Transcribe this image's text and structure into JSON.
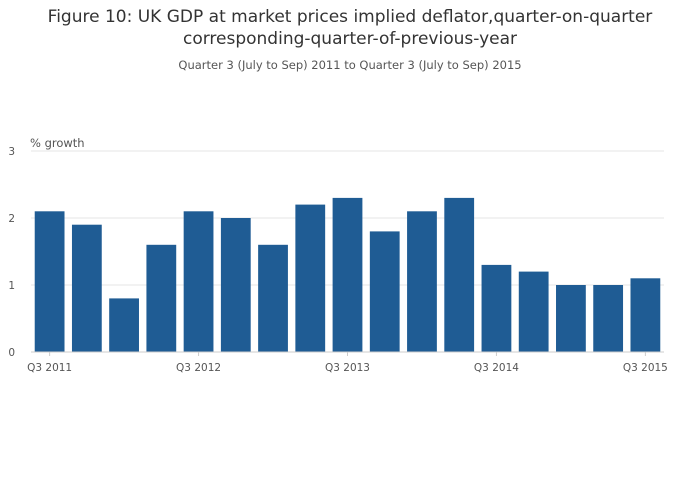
{
  "chart_data": {
    "type": "bar",
    "title_line1": "Figure 10: UK GDP at market prices implied deflator,quarter-on-quarter",
    "title_line2": "corresponding-quarter-of-previous-year",
    "subtitle": "Quarter 3 (July to Sep) 2011 to Quarter 3 (July to Sep) 2015",
    "ylabel": "% growth",
    "xlabel": "",
    "ylim": [
      0,
      3
    ],
    "yticks": [
      0,
      1,
      2,
      3
    ],
    "grid": true,
    "color": "#1f5c94",
    "categories": [
      "Q3 2011",
      "Q4 2011",
      "Q1 2012",
      "Q2 2012",
      "Q3 2012",
      "Q4 2012",
      "Q1 2013",
      "Q2 2013",
      "Q3 2013",
      "Q4 2013",
      "Q1 2014",
      "Q2 2014",
      "Q3 2014",
      "Q4 2014",
      "Q1 2015",
      "Q2 2015",
      "Q3 2015"
    ],
    "values": [
      2.1,
      1.9,
      0.8,
      1.6,
      2.1,
      2.0,
      1.6,
      2.2,
      2.3,
      1.8,
      2.1,
      2.3,
      1.3,
      1.2,
      1.0,
      1.0,
      1.1
    ],
    "xtick_labels": [
      "Q3 2011",
      "Q3 2012",
      "Q3 2013",
      "Q3 2014",
      "Q3 2015"
    ]
  }
}
